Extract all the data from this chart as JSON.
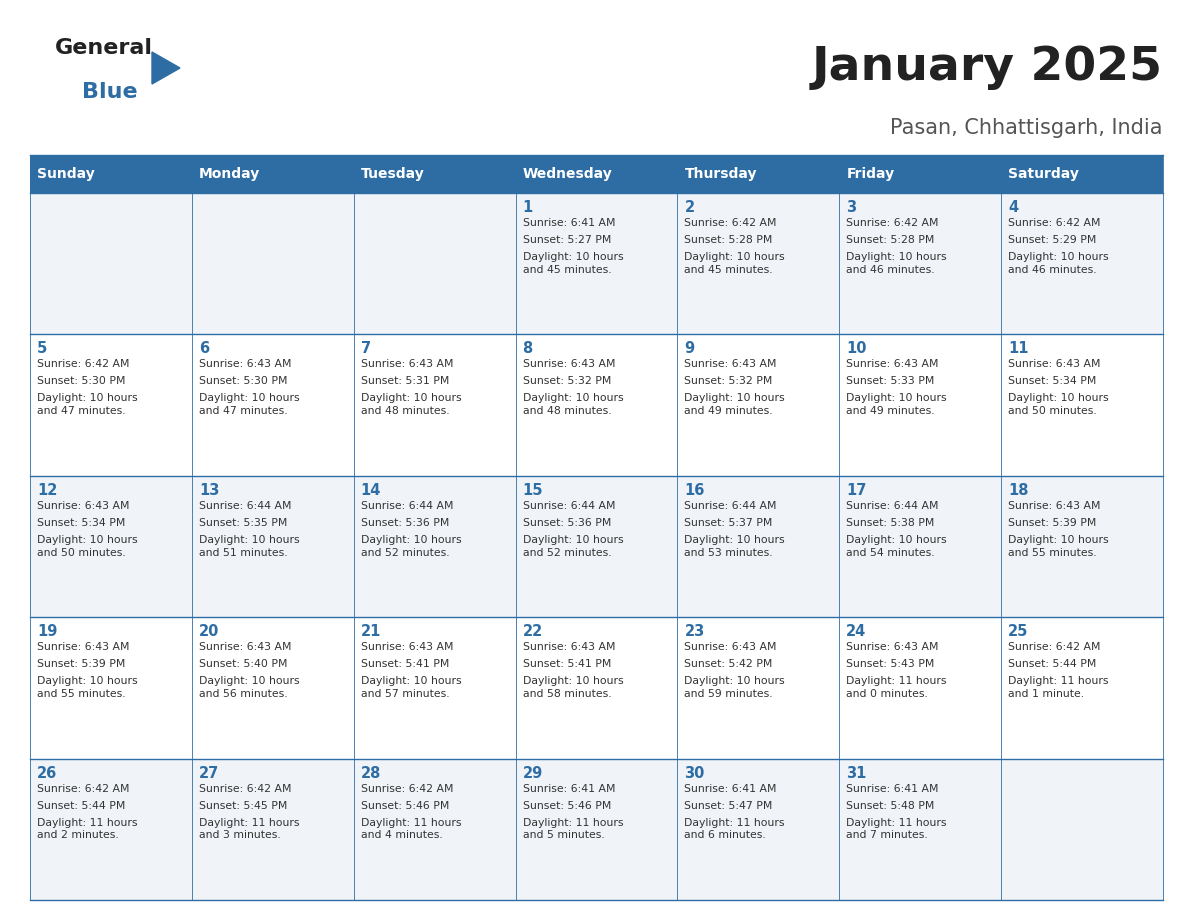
{
  "title": "January 2025",
  "subtitle": "Pasan, Chhattisgarh, India",
  "header_bg": "#2E6DA4",
  "header_text_color": "#FFFFFF",
  "cell_bg_odd": "#F0F4F8",
  "cell_bg_even": "#FFFFFF",
  "day_number_color": "#2E6DA4",
  "cell_text_color": "#333333",
  "grid_line_color": "#2E6DA4",
  "days_of_week": [
    "Sunday",
    "Monday",
    "Tuesday",
    "Wednesday",
    "Thursday",
    "Friday",
    "Saturday"
  ],
  "weeks": [
    [
      {
        "day": "",
        "sunrise": "",
        "sunset": "",
        "daylight": ""
      },
      {
        "day": "",
        "sunrise": "",
        "sunset": "",
        "daylight": ""
      },
      {
        "day": "",
        "sunrise": "",
        "sunset": "",
        "daylight": ""
      },
      {
        "day": "1",
        "sunrise": "Sunrise: 6:41 AM",
        "sunset": "Sunset: 5:27 PM",
        "daylight": "Daylight: 10 hours\nand 45 minutes."
      },
      {
        "day": "2",
        "sunrise": "Sunrise: 6:42 AM",
        "sunset": "Sunset: 5:28 PM",
        "daylight": "Daylight: 10 hours\nand 45 minutes."
      },
      {
        "day": "3",
        "sunrise": "Sunrise: 6:42 AM",
        "sunset": "Sunset: 5:28 PM",
        "daylight": "Daylight: 10 hours\nand 46 minutes."
      },
      {
        "day": "4",
        "sunrise": "Sunrise: 6:42 AM",
        "sunset": "Sunset: 5:29 PM",
        "daylight": "Daylight: 10 hours\nand 46 minutes."
      }
    ],
    [
      {
        "day": "5",
        "sunrise": "Sunrise: 6:42 AM",
        "sunset": "Sunset: 5:30 PM",
        "daylight": "Daylight: 10 hours\nand 47 minutes."
      },
      {
        "day": "6",
        "sunrise": "Sunrise: 6:43 AM",
        "sunset": "Sunset: 5:30 PM",
        "daylight": "Daylight: 10 hours\nand 47 minutes."
      },
      {
        "day": "7",
        "sunrise": "Sunrise: 6:43 AM",
        "sunset": "Sunset: 5:31 PM",
        "daylight": "Daylight: 10 hours\nand 48 minutes."
      },
      {
        "day": "8",
        "sunrise": "Sunrise: 6:43 AM",
        "sunset": "Sunset: 5:32 PM",
        "daylight": "Daylight: 10 hours\nand 48 minutes."
      },
      {
        "day": "9",
        "sunrise": "Sunrise: 6:43 AM",
        "sunset": "Sunset: 5:32 PM",
        "daylight": "Daylight: 10 hours\nand 49 minutes."
      },
      {
        "day": "10",
        "sunrise": "Sunrise: 6:43 AM",
        "sunset": "Sunset: 5:33 PM",
        "daylight": "Daylight: 10 hours\nand 49 minutes."
      },
      {
        "day": "11",
        "sunrise": "Sunrise: 6:43 AM",
        "sunset": "Sunset: 5:34 PM",
        "daylight": "Daylight: 10 hours\nand 50 minutes."
      }
    ],
    [
      {
        "day": "12",
        "sunrise": "Sunrise: 6:43 AM",
        "sunset": "Sunset: 5:34 PM",
        "daylight": "Daylight: 10 hours\nand 50 minutes."
      },
      {
        "day": "13",
        "sunrise": "Sunrise: 6:44 AM",
        "sunset": "Sunset: 5:35 PM",
        "daylight": "Daylight: 10 hours\nand 51 minutes."
      },
      {
        "day": "14",
        "sunrise": "Sunrise: 6:44 AM",
        "sunset": "Sunset: 5:36 PM",
        "daylight": "Daylight: 10 hours\nand 52 minutes."
      },
      {
        "day": "15",
        "sunrise": "Sunrise: 6:44 AM",
        "sunset": "Sunset: 5:36 PM",
        "daylight": "Daylight: 10 hours\nand 52 minutes."
      },
      {
        "day": "16",
        "sunrise": "Sunrise: 6:44 AM",
        "sunset": "Sunset: 5:37 PM",
        "daylight": "Daylight: 10 hours\nand 53 minutes."
      },
      {
        "day": "17",
        "sunrise": "Sunrise: 6:44 AM",
        "sunset": "Sunset: 5:38 PM",
        "daylight": "Daylight: 10 hours\nand 54 minutes."
      },
      {
        "day": "18",
        "sunrise": "Sunrise: 6:43 AM",
        "sunset": "Sunset: 5:39 PM",
        "daylight": "Daylight: 10 hours\nand 55 minutes."
      }
    ],
    [
      {
        "day": "19",
        "sunrise": "Sunrise: 6:43 AM",
        "sunset": "Sunset: 5:39 PM",
        "daylight": "Daylight: 10 hours\nand 55 minutes."
      },
      {
        "day": "20",
        "sunrise": "Sunrise: 6:43 AM",
        "sunset": "Sunset: 5:40 PM",
        "daylight": "Daylight: 10 hours\nand 56 minutes."
      },
      {
        "day": "21",
        "sunrise": "Sunrise: 6:43 AM",
        "sunset": "Sunset: 5:41 PM",
        "daylight": "Daylight: 10 hours\nand 57 minutes."
      },
      {
        "day": "22",
        "sunrise": "Sunrise: 6:43 AM",
        "sunset": "Sunset: 5:41 PM",
        "daylight": "Daylight: 10 hours\nand 58 minutes."
      },
      {
        "day": "23",
        "sunrise": "Sunrise: 6:43 AM",
        "sunset": "Sunset: 5:42 PM",
        "daylight": "Daylight: 10 hours\nand 59 minutes."
      },
      {
        "day": "24",
        "sunrise": "Sunrise: 6:43 AM",
        "sunset": "Sunset: 5:43 PM",
        "daylight": "Daylight: 11 hours\nand 0 minutes."
      },
      {
        "day": "25",
        "sunrise": "Sunrise: 6:42 AM",
        "sunset": "Sunset: 5:44 PM",
        "daylight": "Daylight: 11 hours\nand 1 minute."
      }
    ],
    [
      {
        "day": "26",
        "sunrise": "Sunrise: 6:42 AM",
        "sunset": "Sunset: 5:44 PM",
        "daylight": "Daylight: 11 hours\nand 2 minutes."
      },
      {
        "day": "27",
        "sunrise": "Sunrise: 6:42 AM",
        "sunset": "Sunset: 5:45 PM",
        "daylight": "Daylight: 11 hours\nand 3 minutes."
      },
      {
        "day": "28",
        "sunrise": "Sunrise: 6:42 AM",
        "sunset": "Sunset: 5:46 PM",
        "daylight": "Daylight: 11 hours\nand 4 minutes."
      },
      {
        "day": "29",
        "sunrise": "Sunrise: 6:41 AM",
        "sunset": "Sunset: 5:46 PM",
        "daylight": "Daylight: 11 hours\nand 5 minutes."
      },
      {
        "day": "30",
        "sunrise": "Sunrise: 6:41 AM",
        "sunset": "Sunset: 5:47 PM",
        "daylight": "Daylight: 11 hours\nand 6 minutes."
      },
      {
        "day": "31",
        "sunrise": "Sunrise: 6:41 AM",
        "sunset": "Sunset: 5:48 PM",
        "daylight": "Daylight: 11 hours\nand 7 minutes."
      },
      {
        "day": "",
        "sunrise": "",
        "sunset": "",
        "daylight": ""
      }
    ]
  ]
}
